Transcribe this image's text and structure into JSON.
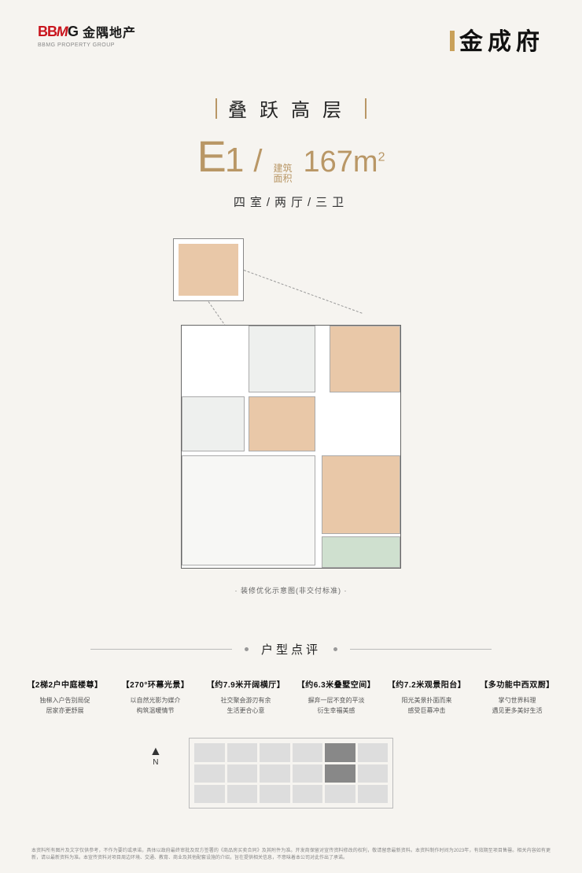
{
  "header": {
    "logo_left_mark_bb": "BB",
    "logo_left_mark_m": "M",
    "logo_left_mark_g": "G",
    "logo_left_cn": "金隅地产",
    "logo_left_sub": "BBMG PROPERTY GROUP",
    "logo_right": "金成府"
  },
  "title": {
    "line1": "叠跃高层",
    "unit_letter": "E",
    "unit_num": "1",
    "area_label_l1": "建筑",
    "area_label_l2": "面积",
    "area_value": "167",
    "area_unit": "m",
    "area_sup": "2",
    "line3": "四室/两厅/三卫"
  },
  "floorplan": {
    "caption": "· 装修优化示意图(非交付标准) ·"
  },
  "review": {
    "title": "户型点评"
  },
  "features": [
    {
      "h": "【2梯2户中庭楼尊】",
      "p1": "独梯入户告别局促",
      "p2": "居家亦更舒展"
    },
    {
      "h": "【270°环幕光景】",
      "p1": "以自然光影为媒介",
      "p2": "构筑温暖情节"
    },
    {
      "h": "【约7.9米开阔横厅】",
      "p1": "社交聚会游刃有余",
      "p2": "生活更合心意"
    },
    {
      "h": "【约6.3米叠墅空间】",
      "p1": "摒弃一层不变的平淡",
      "p2": "衍生幸福美感"
    },
    {
      "h": "【约7.2米观景阳台】",
      "p1": "阳光美景扑面而来",
      "p2": "感受巨幕冲击"
    },
    {
      "h": "【多功能中西双厨】",
      "p1": "掌勺世界料理",
      "p2": "遇见更多美好生活"
    }
  ],
  "compass": {
    "arrow": "▲",
    "n": "N"
  },
  "disclaimer": "本资料所有图片及文字仅供参考，不作为要约或承诺，具体以政府最终审批及双方签署的《商品房买卖合同》及其附件为准。开发商保留对宣传资料修改的权利，敬请留意最新资料。本资料制作时间为2023年，有效期至项目售罄。相关内容如有更新，请以最新资料为准。本宣传资料对项目周边环境、交通、教育、商业及其他配套设施的介绍，旨在提供相关信息，不意味着本公司对此作出了承诺。"
}
